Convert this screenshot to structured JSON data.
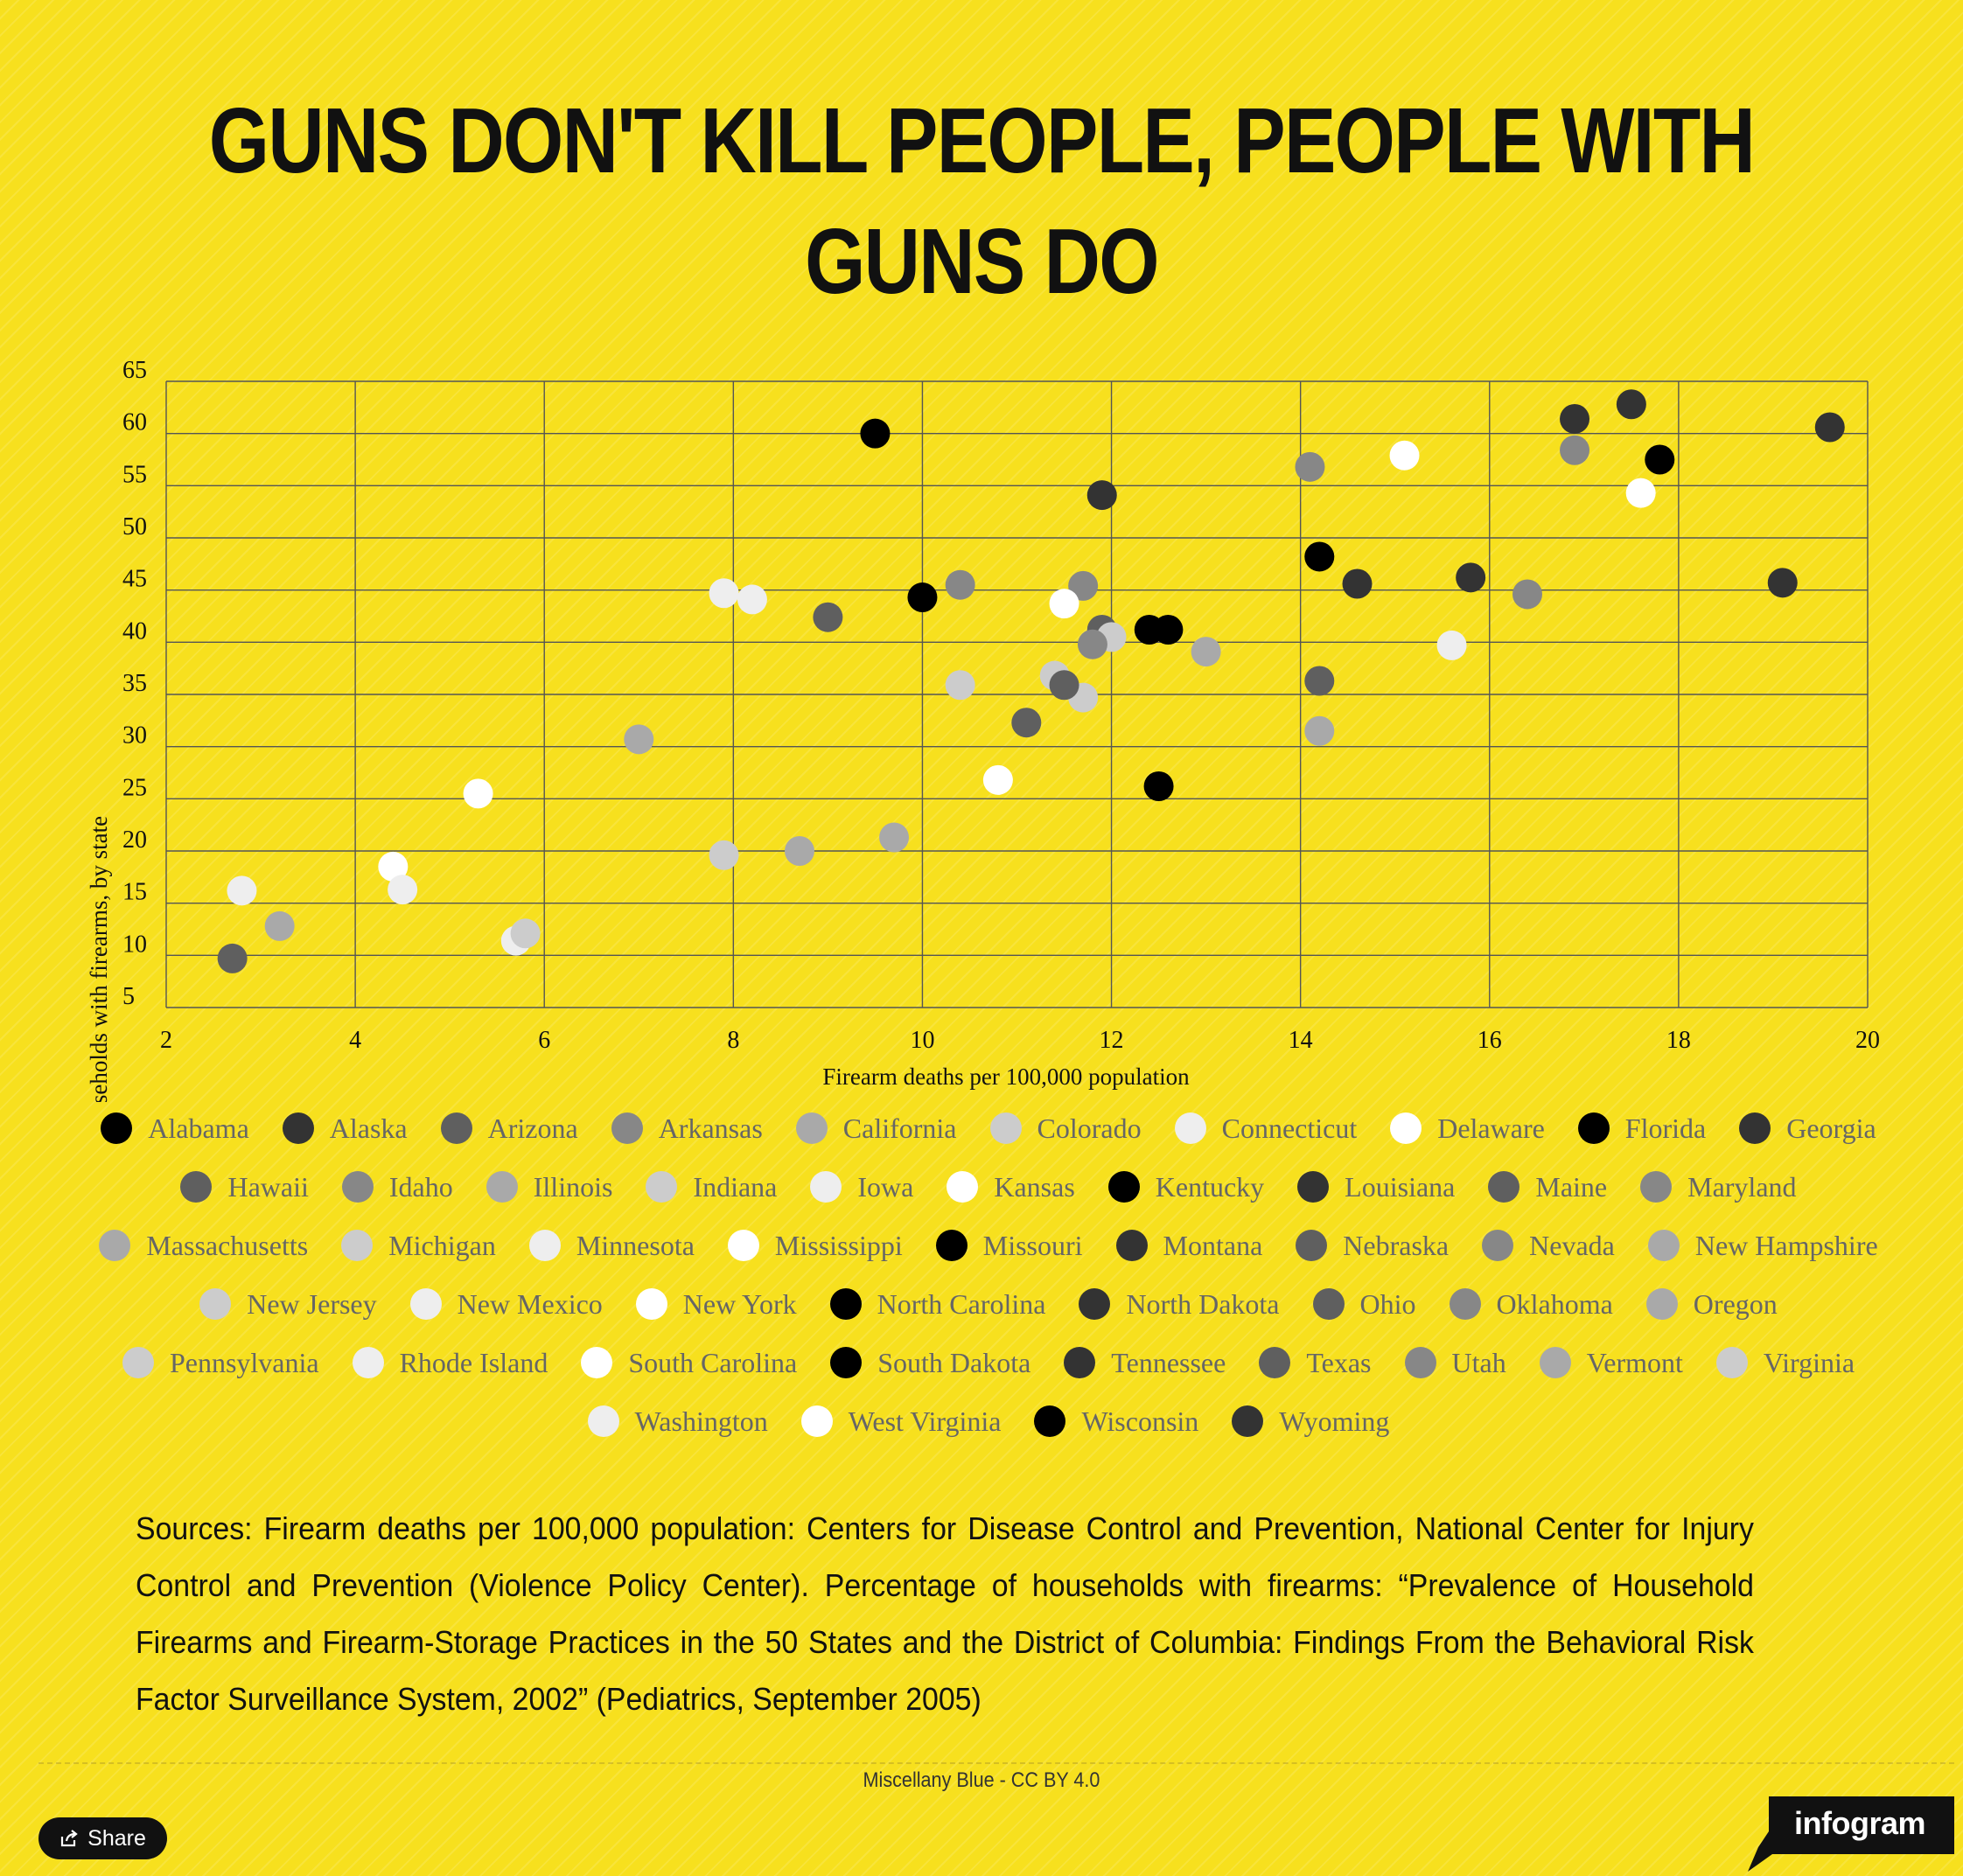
{
  "title": "GUNS DON'T KILL PEOPLE, PEOPLE WITH GUNS DO",
  "chart_data": {
    "type": "scatter",
    "xlabel": "Firearm deaths per 100,000 population",
    "ylabel": "Percentage of households with firearms, by state",
    "xlim": [
      2,
      20
    ],
    "ylim": [
      5,
      65
    ],
    "x_ticks": [
      "2",
      "4",
      "6",
      "8",
      "10",
      "12",
      "14",
      "16",
      "18",
      "20"
    ],
    "y_ticks": [
      "5",
      "10",
      "15",
      "20",
      "25",
      "30",
      "35",
      "40",
      "45",
      "50",
      "55",
      "60",
      "65"
    ],
    "grid": true,
    "legend_position": "bottom",
    "series": [
      {
        "name": "Alabama",
        "color": "#000000",
        "x": 9.5,
        "y": 60.0
      },
      {
        "name": "Alaska",
        "color": "#333333",
        "x": 17.5,
        "y": 62.8
      },
      {
        "name": "Arizona",
        "color": "#5f5f5f",
        "x": 11.9,
        "y": 41.2
      },
      {
        "name": "Arkansas",
        "color": "#878787",
        "x": 16.9,
        "y": 58.4
      },
      {
        "name": "California",
        "color": "#a9a9a9",
        "x": 9.7,
        "y": 21.3
      },
      {
        "name": "Colorado",
        "color": "#cccccc",
        "x": 11.7,
        "y": 34.7
      },
      {
        "name": "Connecticut",
        "color": "#eeeeee",
        "x": 2.8,
        "y": 16.2
      },
      {
        "name": "Delaware",
        "color": "#ffffff",
        "x": 5.3,
        "y": 25.5
      },
      {
        "name": "Florida",
        "color": "#000000",
        "x": 12.4,
        "y": 41.2
      },
      {
        "name": "Georgia",
        "color": "#333333",
        "x": 15.8,
        "y": 46.2
      },
      {
        "name": "Hawaii",
        "color": "#5f5f5f",
        "x": 2.7,
        "y": 9.7
      },
      {
        "name": "Idaho",
        "color": "#878787",
        "x": 14.1,
        "y": 56.8
      },
      {
        "name": "Illinois",
        "color": "#a9a9a9",
        "x": 7.0,
        "y": 30.7
      },
      {
        "name": "Indiana",
        "color": "#cccccc",
        "x": 10.4,
        "y": 35.9
      },
      {
        "name": "Iowa",
        "color": "#eeeeee",
        "x": 5.7,
        "y": 11.4
      },
      {
        "name": "Kansas",
        "color": "#ffffff",
        "x": 4.4,
        "y": 18.5
      },
      {
        "name": "Kentucky",
        "color": "#000000",
        "x": 12.5,
        "y": 26.2
      },
      {
        "name": "Louisiana",
        "color": "#333333",
        "x": 19.6,
        "y": 60.6
      },
      {
        "name": "Maine",
        "color": "#5f5f5f",
        "x": 9.0,
        "y": 42.4
      },
      {
        "name": "Maryland",
        "color": "#878787",
        "x": 11.7,
        "y": 45.4
      },
      {
        "name": "Massachusetts",
        "color": "#a9a9a9",
        "x": 3.2,
        "y": 12.8
      },
      {
        "name": "Michigan",
        "color": "#cccccc",
        "x": 11.4,
        "y": 36.8
      },
      {
        "name": "Minnesota",
        "color": "#eeeeee",
        "x": 8.2,
        "y": 44.1
      },
      {
        "name": "Mississippi",
        "color": "#ffffff",
        "x": 17.6,
        "y": 54.3
      },
      {
        "name": "Missouri",
        "color": "#000000",
        "x": 10.0,
        "y": 44.3
      },
      {
        "name": "Montana",
        "color": "#333333",
        "x": 16.9,
        "y": 61.4
      },
      {
        "name": "Nebraska",
        "color": "#5f5f5f",
        "x": 14.2,
        "y": 36.3
      },
      {
        "name": "Nevada",
        "color": "#878787",
        "x": 10.4,
        "y": 45.5
      },
      {
        "name": "New Hampshire",
        "color": "#a9a9a9",
        "x": 14.2,
        "y": 31.5
      },
      {
        "name": "New Jersey",
        "color": "#cccccc",
        "x": 5.8,
        "y": 12.1
      },
      {
        "name": "New Mexico",
        "color": "#eeeeee",
        "x": 15.6,
        "y": 39.7
      },
      {
        "name": "New York",
        "color": "#ffffff",
        "x": 10.8,
        "y": 26.8
      },
      {
        "name": "North Carolina",
        "color": "#000000",
        "x": 14.2,
        "y": 48.2
      },
      {
        "name": "North Dakota",
        "color": "#333333",
        "x": 11.9,
        "y": 54.1
      },
      {
        "name": "Ohio",
        "color": "#5f5f5f",
        "x": 11.1,
        "y": 32.3
      },
      {
        "name": "Oklahoma",
        "color": "#878787",
        "x": 16.4,
        "y": 44.6
      },
      {
        "name": "Oregon",
        "color": "#a9a9a9",
        "x": 13.0,
        "y": 39.1
      },
      {
        "name": "Pennsylvania",
        "color": "#cccccc",
        "x": 12.0,
        "y": 40.5
      },
      {
        "name": "Rhode Island",
        "color": "#eeeeee",
        "x": 4.5,
        "y": 16.3
      },
      {
        "name": "South Carolina",
        "color": "#ffffff",
        "x": 15.1,
        "y": 57.9
      },
      {
        "name": "South Dakota",
        "color": "#000000",
        "x": 12.6,
        "y": 41.2
      },
      {
        "name": "Tennessee",
        "color": "#333333",
        "x": 14.6,
        "y": 45.6
      },
      {
        "name": "Texas",
        "color": "#5f5f5f",
        "x": 11.5,
        "y": 35.9
      },
      {
        "name": "Utah",
        "color": "#878787",
        "x": 11.8,
        "y": 39.8
      },
      {
        "name": "Vermont",
        "color": "#a9a9a9",
        "x": 8.7,
        "y": 20.0
      },
      {
        "name": "Virginia",
        "color": "#cccccc",
        "x": 7.9,
        "y": 19.6
      },
      {
        "name": "Washington",
        "color": "#eeeeee",
        "x": 7.9,
        "y": 44.7
      },
      {
        "name": "West Virginia",
        "color": "#ffffff",
        "x": 11.5,
        "y": 43.7
      },
      {
        "name": "Wisconsin",
        "color": "#000000",
        "x": 17.8,
        "y": 57.5
      },
      {
        "name": "Wyoming",
        "color": "#333333",
        "x": 19.1,
        "y": 45.7
      }
    ]
  },
  "sources": "Sources: Firearm deaths per 100,000 population: Centers for Disease Control and Prevention, National Center for Injury Control and Prevention (Violence Policy Center). Percentage of households with firearms: “Prevalence of Household Firearms and Firearm-Storage Practices in the 50 States and the District of Columbia: Findings From the Behavioral Risk Factor Surveillance System, 2002” (Pediatrics, September 2005)",
  "attribution": "Miscellany Blue - CC BY 4.0",
  "share_label": "Share",
  "share_icon": "share-icon",
  "logo_text": "infogram"
}
